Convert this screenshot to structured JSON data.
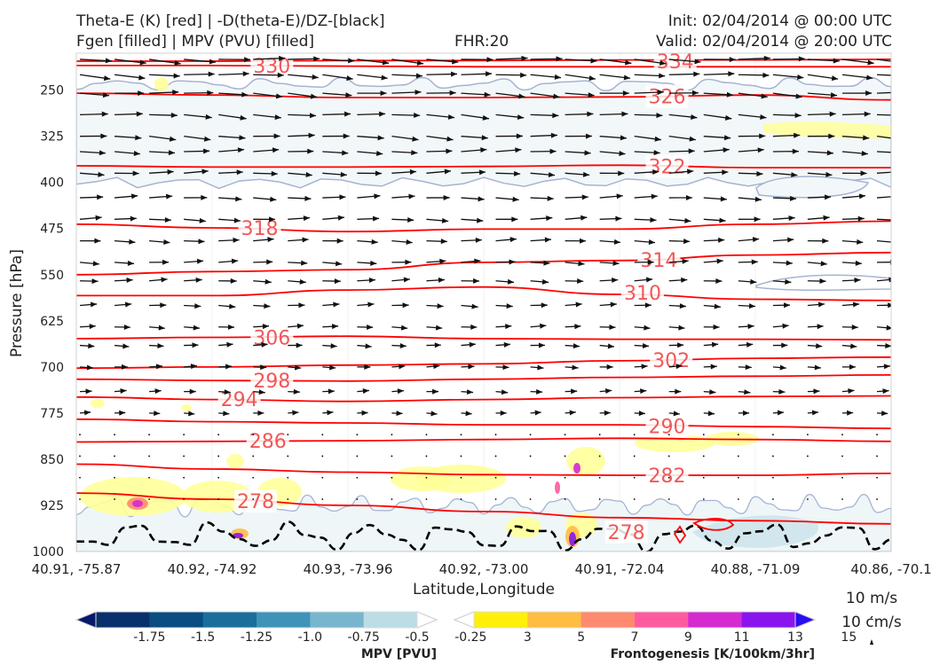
{
  "header": {
    "title_left_1": "Theta-E (K) [red] | -D(theta-E)/DZ-[black]",
    "title_left_2": "Fgen [filled] | MPV (PVU) [filled]",
    "title_center": "FHR:20",
    "title_right_1": "Init: 02/04/2014 @ 00:00 UTC",
    "title_right_2": "Valid: 02/04/2014 @ 20:00 UTC"
  },
  "chart_data": {
    "type": "contour-cross-section",
    "xlabel": "Latitude,Longitude",
    "ylabel": "Pressure [hPa]",
    "x_ticks": [
      "40.91, -75.87",
      "40.92, -74.92",
      "40.93, -73.96",
      "40.92, -73.00",
      "40.91, -72.04",
      "40.88, -71.09",
      "40.86, -70.1"
    ],
    "y_ticks": [
      250,
      325,
      400,
      475,
      550,
      625,
      700,
      775,
      850,
      925,
      1000
    ],
    "ylim": [
      1000,
      190
    ],
    "theta_e_color": "#ff0000",
    "theta_e_label_color": "#f05858",
    "theta_e_contours": [
      {
        "value": 334,
        "p": [
          203,
          203,
          202,
          202,
          201,
          201,
          200
        ]
      },
      {
        "value": 330,
        "p": [
          210,
          210,
          211,
          212,
          212,
          212,
          212
        ]
      },
      {
        "value": 326,
        "p": [
          255,
          258,
          262,
          262,
          261,
          258,
          266
        ]
      },
      {
        "value": 322,
        "p": [
          373,
          375,
          375,
          374,
          372,
          376,
          376
        ]
      },
      {
        "value": 318,
        "p": [
          468,
          474,
          480,
          476,
          476,
          468,
          463
        ]
      },
      {
        "value": 314,
        "p": [
          550,
          545,
          542,
          530,
          527,
          518,
          514
        ]
      },
      {
        "value": 310,
        "p": [
          584,
          584,
          575,
          570,
          582,
          590,
          592
        ]
      },
      {
        "value": 306,
        "p": [
          654,
          652,
          650,
          654,
          655,
          655,
          656
        ]
      },
      {
        "value": 302,
        "p": [
          702,
          700,
          697,
          695,
          690,
          686,
          684
        ]
      },
      {
        "value": 298,
        "p": [
          720,
          722,
          723,
          720,
          717,
          715,
          713
        ]
      },
      {
        "value": 294,
        "p": [
          749,
          753,
          756,
          753,
          750,
          748,
          747
        ]
      },
      {
        "value": 290,
        "p": [
          785,
          789,
          791,
          794,
          794,
          797,
          800
        ]
      },
      {
        "value": 286,
        "p": [
          822,
          821,
          820,
          818,
          816,
          818,
          821
        ]
      },
      {
        "value": 282,
        "p": [
          858,
          866,
          871,
          875,
          876,
          876,
          873
        ]
      },
      {
        "value": 278,
        "p": [
          905,
          915,
          925,
          935,
          945,
          950,
          955
        ]
      }
    ],
    "theta_e_labels": [
      {
        "text": "330",
        "x": 0.24,
        "p": 210
      },
      {
        "text": "334",
        "x": 0.735,
        "p": 203
      },
      {
        "text": "326",
        "x": 0.725,
        "p": 260
      },
      {
        "text": "322",
        "x": 0.725,
        "p": 374
      },
      {
        "text": "318",
        "x": 0.225,
        "p": 474
      },
      {
        "text": "314",
        "x": 0.715,
        "p": 526
      },
      {
        "text": "310",
        "x": 0.695,
        "p": 579
      },
      {
        "text": "306",
        "x": 0.24,
        "p": 652
      },
      {
        "text": "302",
        "x": 0.73,
        "p": 689
      },
      {
        "text": "298",
        "x": 0.24,
        "p": 722
      },
      {
        "text": "294",
        "x": 0.2,
        "p": 752
      },
      {
        "text": "290",
        "x": 0.725,
        "p": 796
      },
      {
        "text": "286",
        "x": 0.235,
        "p": 820
      },
      {
        "text": "282",
        "x": 0.725,
        "p": 876
      },
      {
        "text": "278",
        "x": 0.22,
        "p": 918
      },
      {
        "text": "278",
        "x": 0.675,
        "p": 968
      }
    ],
    "wind_vector_levels_hPa": [
      200,
      225,
      255,
      290,
      325,
      350,
      385,
      425,
      460,
      495,
      530,
      560,
      600,
      635,
      665,
      700,
      740,
      775,
      810,
      845,
      880,
      915
    ],
    "wind_reference": {
      "label_1": "10 m/s",
      "label_2": "10 cm/s"
    },
    "colorbars": [
      {
        "label": "MPV [PVU]",
        "ticks": [
          "-1.75",
          "-1.5",
          "-1.25",
          "-1.0",
          "-0.75",
          "-0.5",
          "-0.25"
        ],
        "colors": [
          "#08186b",
          "#08306b",
          "#0a4d82",
          "#1a6f9a",
          "#3e93b8",
          "#78b6cf",
          "#bcdde6",
          "#ffffff"
        ]
      },
      {
        "label": "Frontogenesis [K/100km/3hr]",
        "ticks": [
          "3",
          "5",
          "7",
          "9",
          "11",
          "13",
          "15"
        ],
        "colors": [
          "#ffffff",
          "#ffef0a",
          "#ffbd42",
          "#ff8a70",
          "#ff5aa0",
          "#d42ad0",
          "#8a14ee",
          "#2a0cf4"
        ]
      }
    ]
  }
}
